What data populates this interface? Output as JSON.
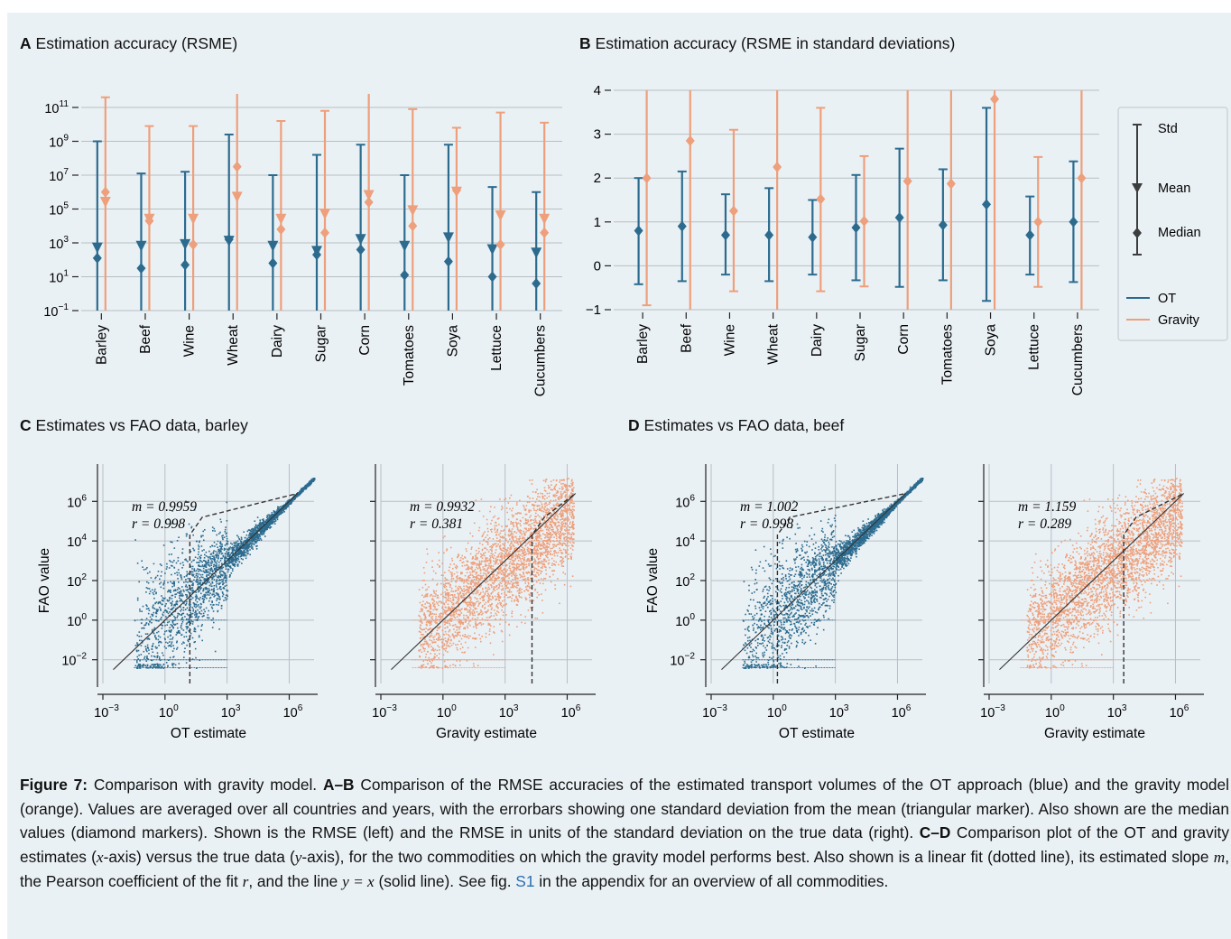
{
  "colors": {
    "ot": "#2c6b8e",
    "gravity": "#ee9f7b",
    "background": "#eaf1f5",
    "grid": "#b8bfc4",
    "axis": "#222222",
    "link": "#2a6cb0"
  },
  "panels": {
    "A": {
      "letter": "A",
      "title": "Estimation accuracy (RSME)"
    },
    "B": {
      "letter": "B",
      "title": "Estimation accuracy (RSME in standard deviations)"
    },
    "C": {
      "letter": "C",
      "title": "Estimates vs FAO data, barley"
    },
    "D": {
      "letter": "D",
      "title": "Estimates vs FAO data, beef"
    }
  },
  "legend": {
    "std": "Std",
    "mean": "Mean",
    "median": "Median",
    "ot": "OT",
    "gravity": "Gravity"
  },
  "chart_data": [
    {
      "id": "A",
      "type": "errorbar",
      "yscale": "log10",
      "title": "Estimation accuracy (RSME)",
      "ylim_log10": [
        -1,
        11.8
      ],
      "yticks": [
        {
          "base": "10",
          "exp": "11",
          "log": 11
        },
        {
          "base": "10",
          "exp": "9",
          "log": 9
        },
        {
          "base": "10",
          "exp": "7",
          "log": 7
        },
        {
          "base": "10",
          "exp": "5",
          "log": 5
        },
        {
          "base": "10",
          "exp": "3",
          "log": 3
        },
        {
          "base": "10",
          "exp": "1",
          "log": 1
        },
        {
          "base": "10",
          "exp": "−1",
          "log": -1
        }
      ],
      "categories": [
        "Barley",
        "Beef",
        "Wine",
        "Wheat",
        "Dairy",
        "Sugar",
        "Corn",
        "Tomatoes",
        "Soya",
        "Lettuce",
        "Cucumbers"
      ],
      "series": [
        {
          "name": "OT",
          "mean_log10": [
            2.7,
            2.8,
            2.9,
            3.1,
            2.8,
            2.5,
            3.2,
            2.8,
            3.3,
            2.6,
            2.4
          ],
          "median_log10": [
            2.1,
            1.5,
            1.7,
            3.2,
            1.8,
            2.3,
            2.6,
            1.1,
            1.9,
            1.0,
            0.6
          ],
          "upper_log10": [
            9.0,
            7.1,
            7.2,
            9.4,
            7.0,
            8.2,
            8.8,
            7.0,
            8.8,
            6.3,
            6.0
          ],
          "lower_log10": [
            -1,
            -1,
            -1,
            -1,
            -1,
            -1,
            -1,
            -1,
            -1,
            -1,
            -1
          ]
        },
        {
          "name": "Gravity",
          "mean_log10": [
            5.4,
            4.4,
            4.4,
            5.7,
            4.4,
            4.7,
            5.8,
            4.9,
            6.0,
            4.6,
            4.4
          ],
          "median_log10": [
            6.0,
            4.3,
            2.9,
            7.5,
            3.8,
            3.6,
            5.4,
            4.0,
            6.1,
            2.9,
            3.6
          ],
          "upper_log10": [
            11.6,
            9.9,
            9.9,
            11.8,
            10.2,
            10.8,
            11.8,
            10.9,
            9.8,
            10.7,
            10.1
          ],
          "lower_log10": [
            -1,
            -1,
            -1,
            -1,
            -1,
            -1,
            -1,
            -1,
            -1,
            -1,
            -1
          ]
        }
      ]
    },
    {
      "id": "B",
      "type": "errorbar",
      "title": "Estimation accuracy (RSME in standard deviations)",
      "ylim": [
        -1,
        4
      ],
      "yticks": [
        "4",
        "3",
        "2",
        "1",
        "0",
        "−1"
      ],
      "categories": [
        "Barley",
        "Beef",
        "Wine",
        "Wheat",
        "Dairy",
        "Sugar",
        "Corn",
        "Tomatoes",
        "Soya",
        "Lettuce",
        "Cucumbers"
      ],
      "series": [
        {
          "name": "OT",
          "median": [
            0.8,
            0.9,
            0.7,
            0.7,
            0.65,
            0.87,
            1.1,
            0.93,
            1.4,
            0.7,
            1.0
          ],
          "upper": [
            2.0,
            2.15,
            1.63,
            1.77,
            1.5,
            2.07,
            2.67,
            2.2,
            3.6,
            1.58,
            2.38
          ],
          "lower": [
            -0.42,
            -0.35,
            -0.2,
            -0.35,
            -0.2,
            -0.33,
            -0.48,
            -0.33,
            -0.8,
            -0.2,
            -0.37
          ]
        },
        {
          "name": "Gravity",
          "median": [
            2.0,
            2.85,
            1.25,
            2.25,
            1.52,
            1.02,
            1.93,
            1.87,
            3.8,
            1.0,
            2.0
          ],
          "upper": [
            4.0,
            4.0,
            3.1,
            4.0,
            3.6,
            2.5,
            4.0,
            4.0,
            4.0,
            2.48,
            4.0
          ],
          "lower": [
            -0.9,
            -1.0,
            -0.58,
            -1.0,
            -0.58,
            -0.47,
            -1.0,
            -1.0,
            -1.0,
            -0.48,
            -1.0
          ]
        }
      ]
    },
    {
      "id": "C-OT",
      "type": "scatter",
      "series": "OT",
      "xlabel": "OT estimate",
      "ylabel": "FAO value",
      "xlim_log10": [
        -3,
        7.2
      ],
      "ylim_log10": [
        -3.2,
        7.2
      ],
      "xticks": [
        {
          "exp": "−3",
          "log": -3
        },
        {
          "exp": "0",
          "log": 0
        },
        {
          "exp": "3",
          "log": 3
        },
        {
          "exp": "6",
          "log": 6
        }
      ],
      "yticks": [
        {
          "exp": "6",
          "log": 6
        },
        {
          "exp": "4",
          "log": 4
        },
        {
          "exp": "2",
          "log": 2
        },
        {
          "exp": "0",
          "log": 0
        },
        {
          "exp": "−2",
          "log": -2
        }
      ],
      "fit_label_m": "m = 0.9959",
      "fit_label_r": "r = 0.998",
      "slope": 0.9959,
      "pearson_r": 0.998,
      "fit_break_log10": 1.2
    },
    {
      "id": "C-Gravity",
      "type": "scatter",
      "series": "Gravity",
      "xlabel": "Gravity estimate",
      "xlim_log10": [
        -3,
        7.2
      ],
      "ylim_log10": [
        -3.2,
        7.2
      ],
      "xticks": [
        {
          "exp": "−3",
          "log": -3
        },
        {
          "exp": "0",
          "log": 0
        },
        {
          "exp": "3",
          "log": 3
        },
        {
          "exp": "6",
          "log": 6
        }
      ],
      "fit_label_m": "m = 0.9932",
      "fit_label_r": "r = 0.381",
      "slope": 0.9932,
      "pearson_r": 0.381,
      "fit_break_log10": 4.3
    },
    {
      "id": "D-OT",
      "type": "scatter",
      "series": "OT",
      "xlabel": "OT estimate",
      "ylabel": "FAO value",
      "xlim_log10": [
        -3,
        7.2
      ],
      "ylim_log10": [
        -3.2,
        7.2
      ],
      "xticks": [
        {
          "exp": "−3",
          "log": -3
        },
        {
          "exp": "0",
          "log": 0
        },
        {
          "exp": "3",
          "log": 3
        },
        {
          "exp": "6",
          "log": 6
        }
      ],
      "yticks": [
        {
          "exp": "6",
          "log": 6
        },
        {
          "exp": "4",
          "log": 4
        },
        {
          "exp": "2",
          "log": 2
        },
        {
          "exp": "0",
          "log": 0
        },
        {
          "exp": "−2",
          "log": -2
        }
      ],
      "fit_label_m": "m = 1.002",
      "fit_label_r": "r = 0.998",
      "slope": 1.002,
      "pearson_r": 0.998,
      "fit_break_log10": 0.2
    },
    {
      "id": "D-Gravity",
      "type": "scatter",
      "series": "Gravity",
      "xlabel": "Gravity estimate",
      "xlim_log10": [
        -3,
        7.2
      ],
      "ylim_log10": [
        -3.2,
        7.2
      ],
      "xticks": [
        {
          "exp": "−3",
          "log": -3
        },
        {
          "exp": "0",
          "log": 0
        },
        {
          "exp": "3",
          "log": 3
        },
        {
          "exp": "6",
          "log": 6
        }
      ],
      "fit_label_m": "m = 1.159",
      "fit_label_r": "r = 0.289",
      "slope": 1.159,
      "pearson_r": 0.289,
      "fit_break_log10": 3.5
    }
  ],
  "caption": {
    "fig_label": "Figure 7:",
    "text1": " Comparison with gravity model. ",
    "lbl_ab": "A–B",
    "text2": " Comparison of the RMSE accuracies of the estimated transport volumes of the OT approach (blue) and the gravity model (orange). Values are averaged over all countries and years, with the errorbars showing one standard deviation from the mean (triangular marker). Also shown are the median values (diamond markers). Shown is the RMSE (left) and the RMSE in units of the standard deviation on the true data (right). ",
    "lbl_cd": "C–D",
    "text3": " Comparison plot of the OT and gravity estimates (",
    "var_x": "x",
    "text4": "-axis) versus the true data (",
    "var_y": "y",
    "text5": "-axis), for the two commodities on which the gravity model performs best. Also shown is a linear fit (dotted line), its estimated slope ",
    "var_m": "m",
    "text6": ", the Pearson coefficient of the fit ",
    "var_r": "r",
    "text7": ", and the line ",
    "eq": "y = x",
    "text8": " (solid line). See fig. ",
    "link": "S1",
    "text9": " in the appendix for an overview of all commodities."
  }
}
